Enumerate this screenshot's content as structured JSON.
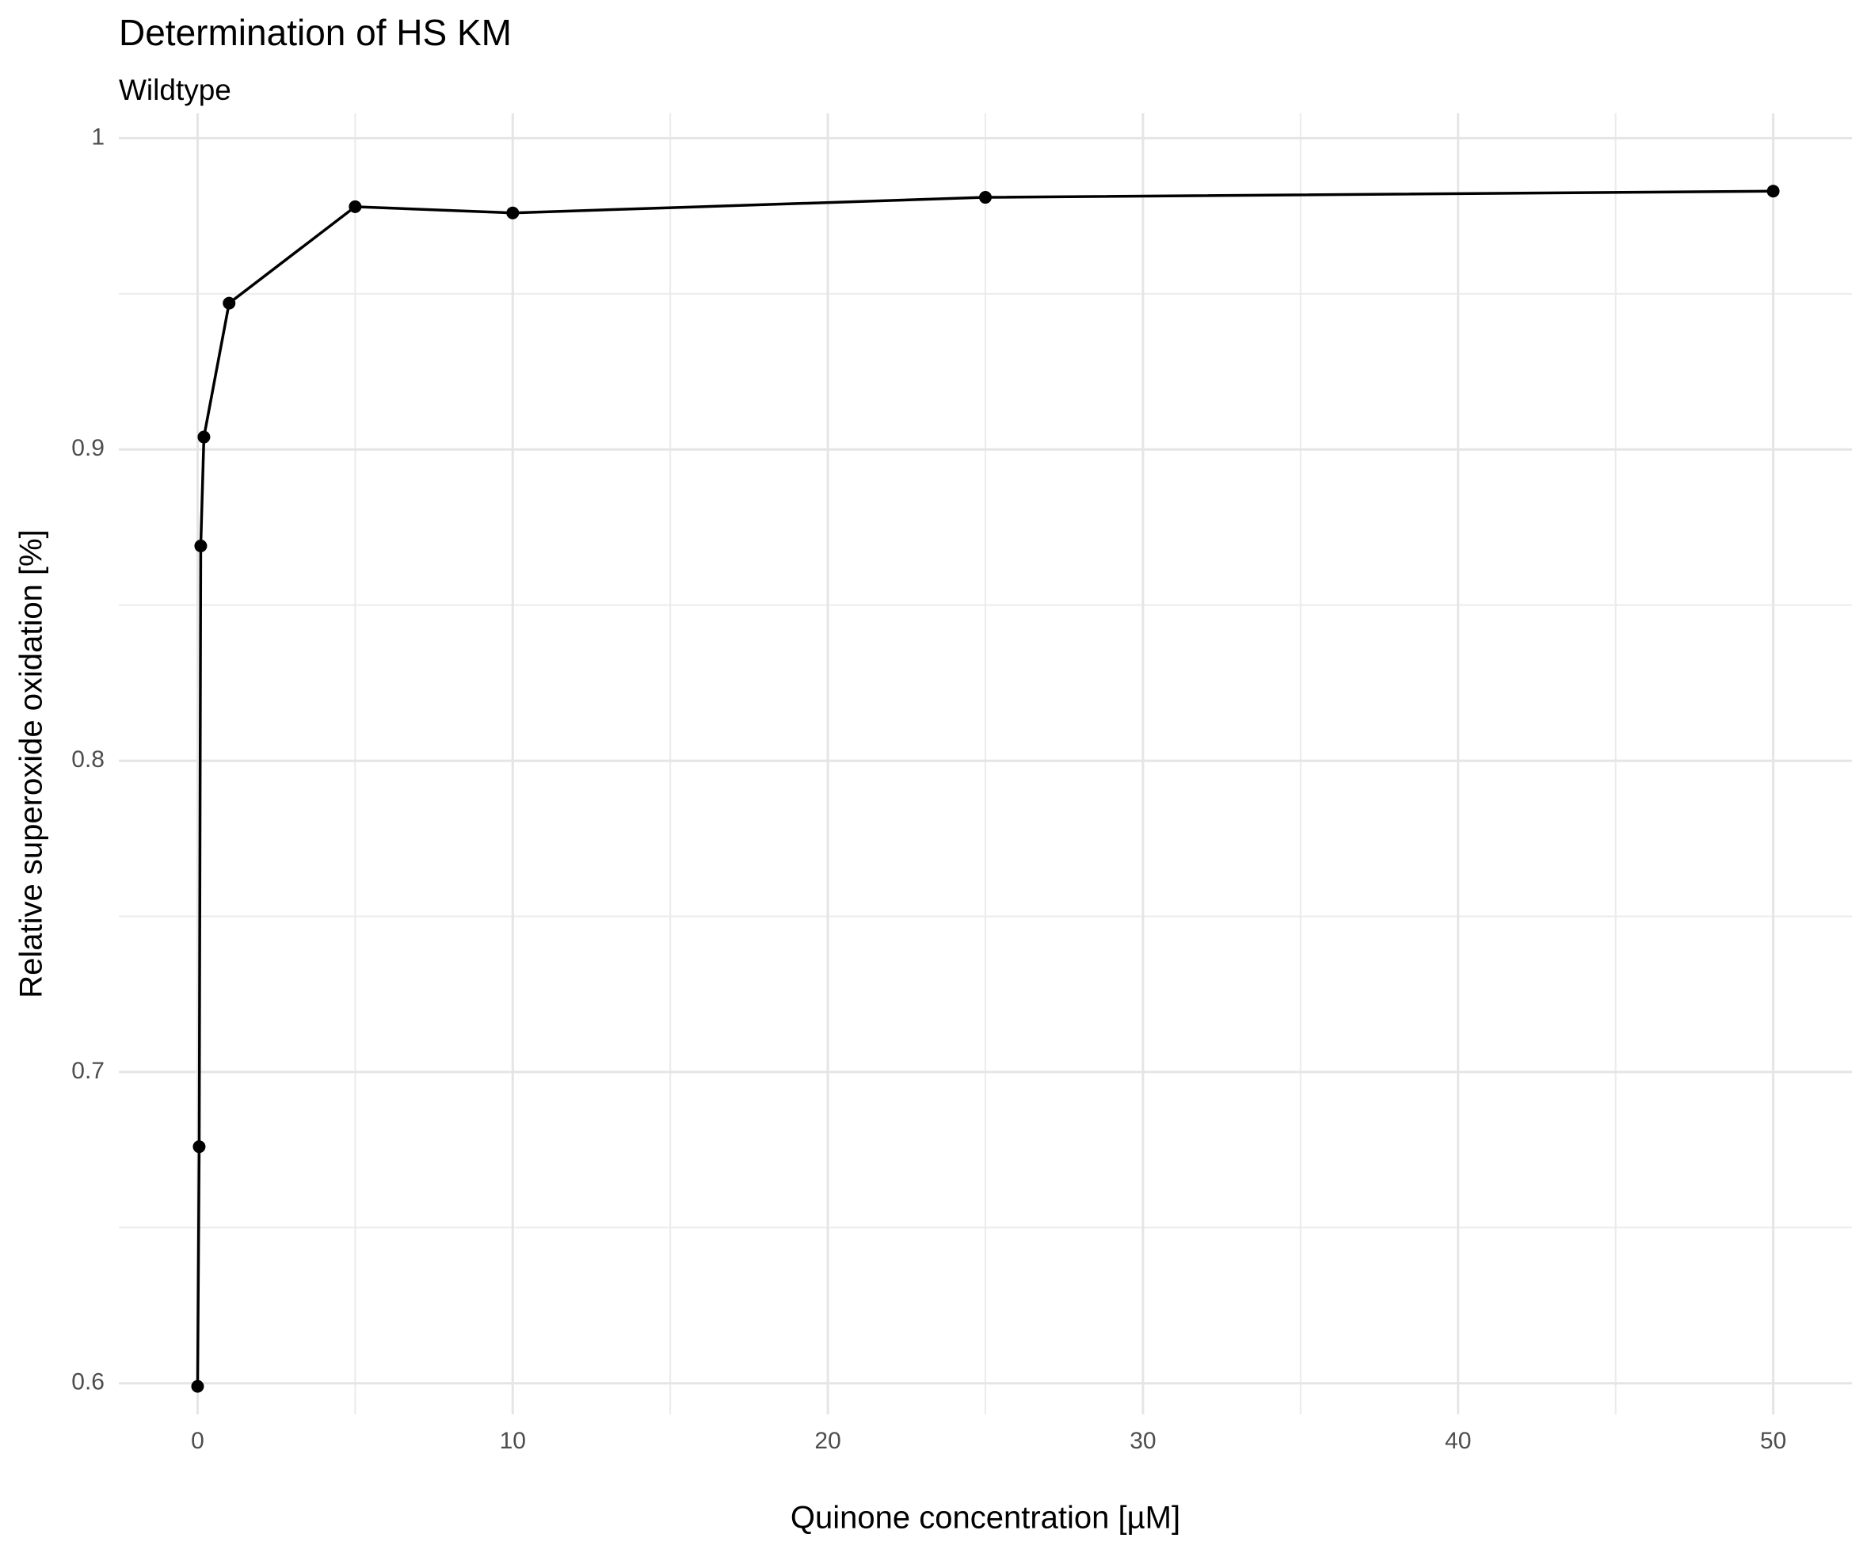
{
  "chart_data": {
    "type": "line",
    "title": "Determination of HS KM",
    "subtitle": "Wildtype",
    "x_label": "Quinone concentration [µM]",
    "y_label": "Relative superoxide oxidation [%]",
    "x": [
      0,
      0.05,
      0.1,
      0.2,
      1,
      5,
      10,
      25,
      50
    ],
    "series": [
      {
        "color": "#000000",
        "values": [
          0.599,
          0.676,
          0.869,
          0.904,
          0.947,
          0.978,
          0.976,
          0.981,
          0.983
        ]
      }
    ],
    "xlim": [
      -2.5,
      52.5
    ],
    "ylim": [
      0.59,
      1.008
    ],
    "xticks": [
      0,
      10,
      20,
      30,
      40,
      50
    ],
    "yticks": [
      0.6,
      0.7,
      0.8,
      0.9,
      1.0
    ],
    "grid": true
  }
}
